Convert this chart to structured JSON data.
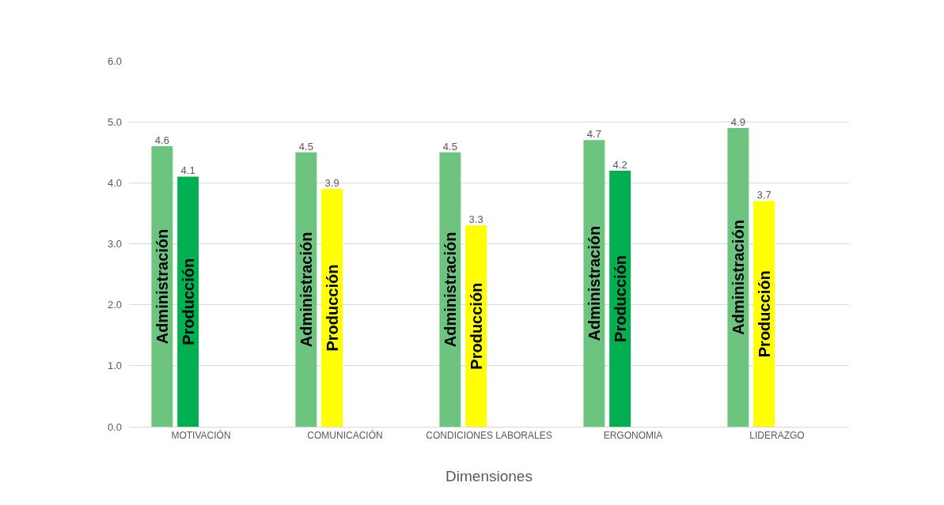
{
  "chart_data": {
    "type": "bar",
    "xlabel": "Dimensiones",
    "categories": [
      "MOTIVACIÓN",
      "COMUNICACIÓN",
      "CONDICIONES LABORALES",
      "ERGONOMIA",
      "LIDERAZGO"
    ],
    "series": [
      {
        "name": "Administración",
        "color": "#6cc47e",
        "values": [
          4.6,
          4.5,
          4.5,
          4.7,
          4.9
        ]
      },
      {
        "name": "Producción",
        "colors": [
          "#00b050",
          "#ffff00",
          "#ffff00",
          "#00b050",
          "#ffff00"
        ],
        "values": [
          4.1,
          3.9,
          3.3,
          4.2,
          3.7
        ]
      }
    ],
    "ylim": [
      0,
      6
    ],
    "yticks": [
      {
        "value": 0,
        "label": "0.0"
      },
      {
        "value": 1,
        "label": "1.0"
      },
      {
        "value": 2,
        "label": "2.0"
      },
      {
        "value": 3,
        "label": "3.0"
      },
      {
        "value": 4,
        "label": "4.0"
      },
      {
        "value": 5,
        "label": "5.0"
      },
      {
        "value": 6,
        "label": "6.0"
      }
    ],
    "grid": "y",
    "data_labels": true
  }
}
